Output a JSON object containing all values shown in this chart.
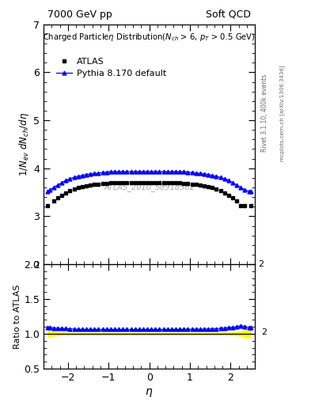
{
  "title_left": "7000 GeV pp",
  "title_right": "Soft QCD",
  "ylabel_main": "1/N_{ev} dN_{ch}/dη",
  "ylabel_ratio": "Ratio to ATLAS",
  "xlabel": "η",
  "right_label1": "Rivet 3.1.10, 400k events",
  "right_label2": "mcplots.cern.ch [arXiv:1306.3436]",
  "watermark": "ATLAS_2010_S8918562",
  "xlim": [
    -2.6,
    2.6
  ],
  "ylim_main": [
    2.0,
    7.0
  ],
  "ylim_ratio": [
    0.5,
    2.0
  ],
  "atlas_eta": [
    -2.5,
    -2.35,
    -2.25,
    -2.15,
    -2.05,
    -1.95,
    -1.85,
    -1.75,
    -1.65,
    -1.55,
    -1.45,
    -1.35,
    -1.25,
    -1.15,
    -1.05,
    -0.95,
    -0.85,
    -0.75,
    -0.65,
    -0.55,
    -0.45,
    -0.35,
    -0.25,
    -0.15,
    -0.05,
    0.05,
    0.15,
    0.25,
    0.35,
    0.45,
    0.55,
    0.65,
    0.75,
    0.85,
    0.95,
    1.05,
    1.15,
    1.25,
    1.35,
    1.45,
    1.55,
    1.65,
    1.75,
    1.85,
    1.95,
    2.05,
    2.15,
    2.25,
    2.35,
    2.5
  ],
  "atlas_vals": [
    3.22,
    3.32,
    3.38,
    3.44,
    3.49,
    3.53,
    3.57,
    3.6,
    3.62,
    3.64,
    3.65,
    3.66,
    3.67,
    3.68,
    3.69,
    3.7,
    3.7,
    3.7,
    3.7,
    3.7,
    3.7,
    3.7,
    3.7,
    3.7,
    3.7,
    3.7,
    3.7,
    3.7,
    3.7,
    3.7,
    3.7,
    3.7,
    3.7,
    3.69,
    3.68,
    3.67,
    3.66,
    3.65,
    3.64,
    3.62,
    3.6,
    3.57,
    3.53,
    3.49,
    3.44,
    3.38,
    3.32,
    3.22,
    3.22,
    3.22
  ],
  "atlas_err_lo": [
    0.2,
    0.12,
    0.1,
    0.09,
    0.08,
    0.08,
    0.08,
    0.08,
    0.08,
    0.08,
    0.08,
    0.08,
    0.08,
    0.08,
    0.08,
    0.08,
    0.08,
    0.08,
    0.08,
    0.08,
    0.08,
    0.08,
    0.08,
    0.08,
    0.08,
    0.08,
    0.08,
    0.08,
    0.08,
    0.08,
    0.08,
    0.08,
    0.08,
    0.08,
    0.08,
    0.08,
    0.08,
    0.08,
    0.08,
    0.08,
    0.08,
    0.08,
    0.08,
    0.08,
    0.08,
    0.09,
    0.1,
    0.12,
    0.2,
    0.2
  ],
  "pythia_eta": [
    -2.5,
    -2.45,
    -2.35,
    -2.25,
    -2.15,
    -2.05,
    -1.95,
    -1.85,
    -1.75,
    -1.65,
    -1.55,
    -1.45,
    -1.35,
    -1.25,
    -1.15,
    -1.05,
    -0.95,
    -0.85,
    -0.75,
    -0.65,
    -0.55,
    -0.45,
    -0.35,
    -0.25,
    -0.15,
    -0.05,
    0.05,
    0.15,
    0.25,
    0.35,
    0.45,
    0.55,
    0.65,
    0.75,
    0.85,
    0.95,
    1.05,
    1.15,
    1.25,
    1.35,
    1.45,
    1.55,
    1.65,
    1.75,
    1.85,
    1.95,
    2.05,
    2.15,
    2.25,
    2.35,
    2.45,
    2.5
  ],
  "pythia_vals": [
    3.52,
    3.55,
    3.6,
    3.65,
    3.7,
    3.75,
    3.78,
    3.81,
    3.83,
    3.85,
    3.87,
    3.88,
    3.89,
    3.9,
    3.91,
    3.92,
    3.93,
    3.93,
    3.93,
    3.93,
    3.93,
    3.93,
    3.93,
    3.93,
    3.93,
    3.93,
    3.93,
    3.93,
    3.93,
    3.93,
    3.93,
    3.93,
    3.93,
    3.93,
    3.93,
    3.92,
    3.91,
    3.9,
    3.89,
    3.88,
    3.87,
    3.85,
    3.83,
    3.81,
    3.78,
    3.75,
    3.7,
    3.65,
    3.6,
    3.55,
    3.52,
    3.52
  ],
  "atlas_color": "black",
  "pythia_color": "blue",
  "atlas_marker": "s",
  "pythia_marker": "^",
  "yticks_main": [
    2,
    3,
    4,
    5,
    6,
    7
  ],
  "yticks_ratio": [
    0.5,
    1.0,
    1.5,
    2.0
  ],
  "xticks": [
    -2,
    -1,
    0,
    1,
    2
  ],
  "bg_color": "#f5f5f5"
}
